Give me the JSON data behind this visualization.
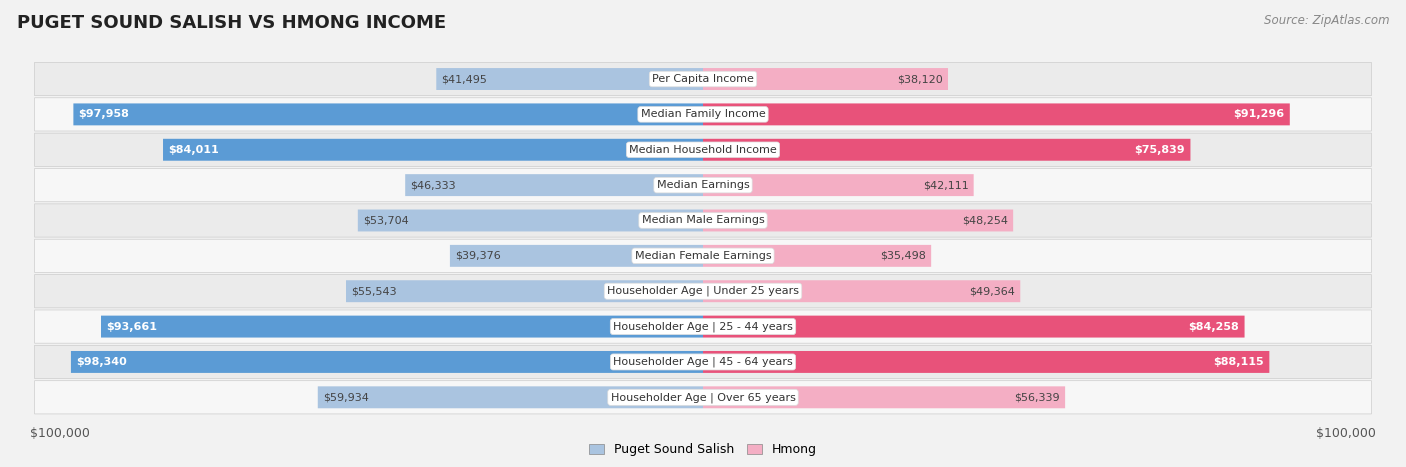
{
  "title": "PUGET SOUND SALISH VS HMONG INCOME",
  "source": "Source: ZipAtlas.com",
  "categories": [
    "Per Capita Income",
    "Median Family Income",
    "Median Household Income",
    "Median Earnings",
    "Median Male Earnings",
    "Median Female Earnings",
    "Householder Age | Under 25 years",
    "Householder Age | 25 - 44 years",
    "Householder Age | 45 - 64 years",
    "Householder Age | Over 65 years"
  ],
  "salish_values": [
    41495,
    97958,
    84011,
    46333,
    53704,
    39376,
    55543,
    93661,
    98340,
    59934
  ],
  "hmong_values": [
    38120,
    91296,
    75839,
    42111,
    48254,
    35498,
    49364,
    84258,
    88115,
    56339
  ],
  "salish_labels": [
    "$41,495",
    "$97,958",
    "$84,011",
    "$46,333",
    "$53,704",
    "$39,376",
    "$55,543",
    "$93,661",
    "$98,340",
    "$59,934"
  ],
  "hmong_labels": [
    "$38,120",
    "$91,296",
    "$75,839",
    "$42,111",
    "$48,254",
    "$35,498",
    "$49,364",
    "$84,258",
    "$88,115",
    "$56,339"
  ],
  "max_value": 100000,
  "salish_color_light": "#aac4e0",
  "salish_color_dark": "#5b9bd5",
  "hmong_color_light": "#f4aec4",
  "hmong_color_dark": "#e8527a",
  "full_threshold": 75000,
  "bg_color": "#f2f2f2",
  "row_bg_even": "#ebebeb",
  "row_bg_odd": "#f7f7f7",
  "salish_legend": "Puget Sound Salish",
  "hmong_legend": "Hmong",
  "xlabel_left": "$100,000",
  "xlabel_right": "$100,000"
}
